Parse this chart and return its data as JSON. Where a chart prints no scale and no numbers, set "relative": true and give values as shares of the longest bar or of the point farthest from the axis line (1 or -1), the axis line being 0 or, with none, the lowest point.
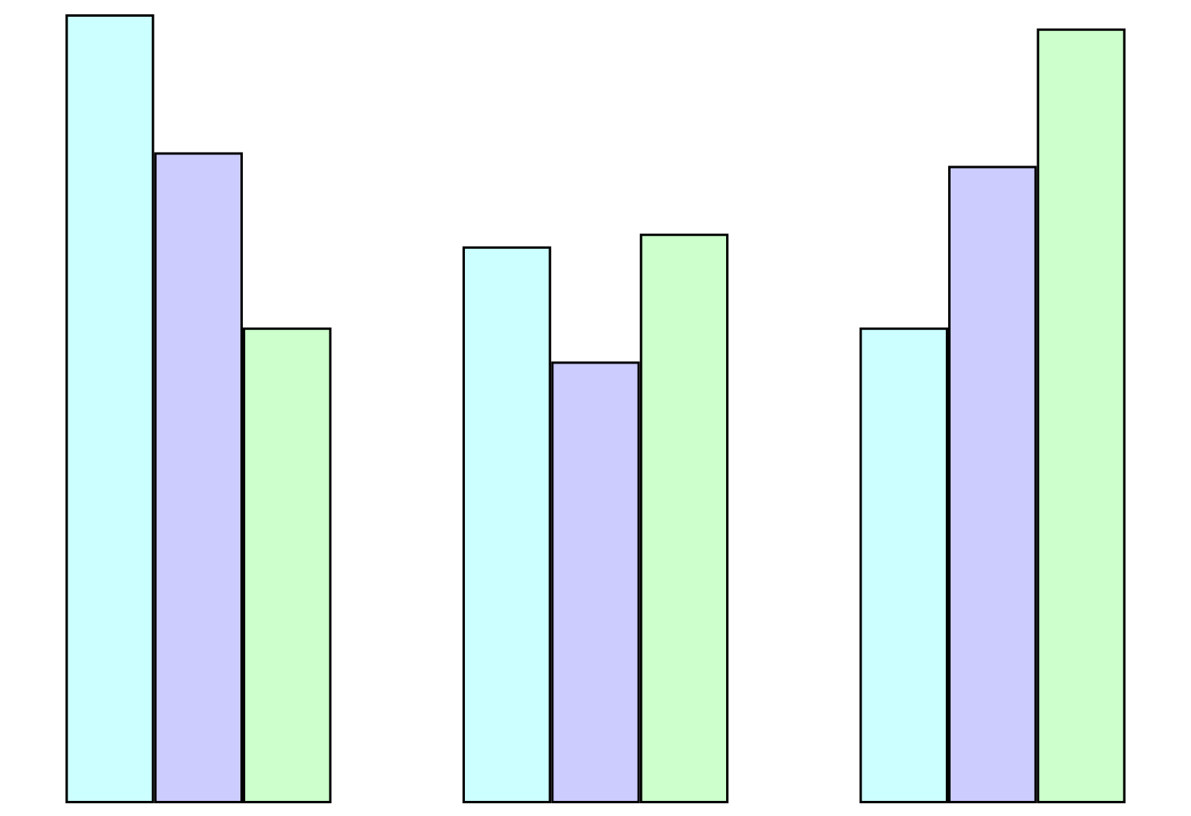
{
  "chart_data": {
    "type": "bar",
    "relative": true,
    "categories": [
      null,
      null,
      null
    ],
    "series": [
      {
        "color": "#ccffff",
        "values": [
          1,
          0.706,
          0.603
        ]
      },
      {
        "color": "#ccccff",
        "values": [
          0.825,
          0.56,
          0.808
        ]
      },
      {
        "color": "#ccffcc",
        "values": [
          0.603,
          0.722,
          0.982
        ]
      }
    ]
  }
}
